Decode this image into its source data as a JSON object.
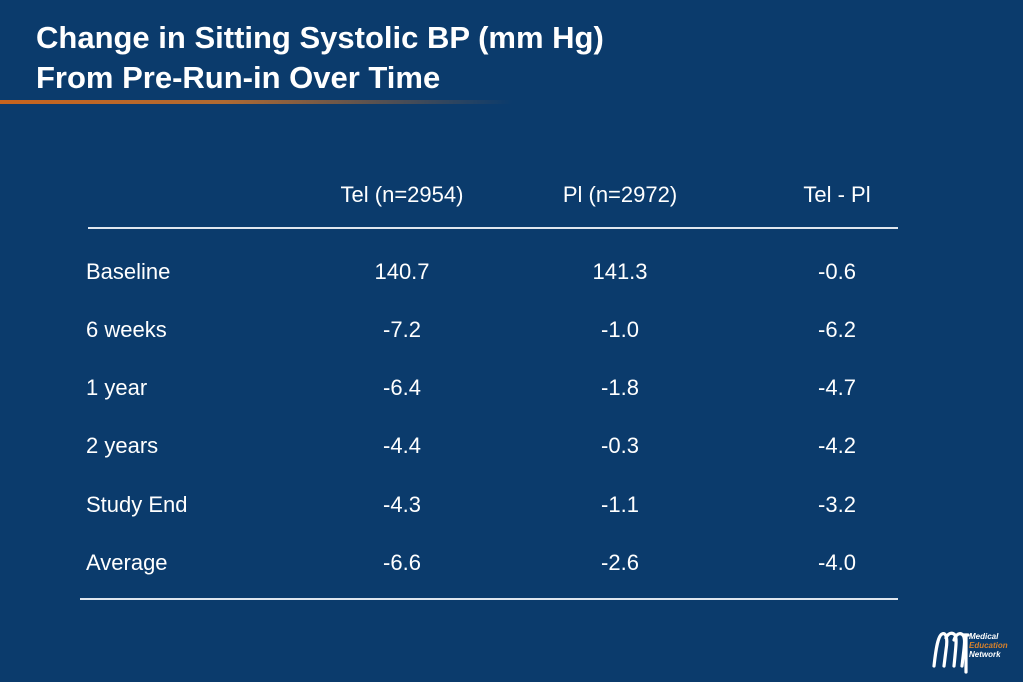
{
  "title": {
    "line1": "Change in Sitting Systolic BP (mm Hg)",
    "line2": "From Pre-Run-in Over Time"
  },
  "table": {
    "headers": {
      "label": "",
      "tel": "Tel (n=2954)",
      "pl": "Pl (n=2972)",
      "diff": "Tel - Pl"
    },
    "rows": [
      {
        "label": "Baseline",
        "tel": "140.7",
        "pl": "141.3",
        "diff": "-0.6"
      },
      {
        "label": "6 weeks",
        "tel": "-7.2",
        "pl": "-1.0",
        "diff": "-6.2"
      },
      {
        "label": "1 year",
        "tel": "-6.4",
        "pl": "-1.8",
        "diff": "-4.7"
      },
      {
        "label": "2 years",
        "tel": "-4.4",
        "pl": "-0.3",
        "diff": "-4.2"
      },
      {
        "label": "Study End",
        "tel": "-4.3",
        "pl": "-1.1",
        "diff": "-3.2"
      },
      {
        "label": "Average",
        "tel": "-6.6",
        "pl": "-2.6",
        "diff": "-4.0"
      }
    ]
  },
  "logo": {
    "line1": "Medical",
    "line2": "Education",
    "line3": "Network"
  },
  "colors": {
    "background": "#0b3b6c",
    "text": "#ffffff",
    "accent_rule": "#c8641e"
  }
}
